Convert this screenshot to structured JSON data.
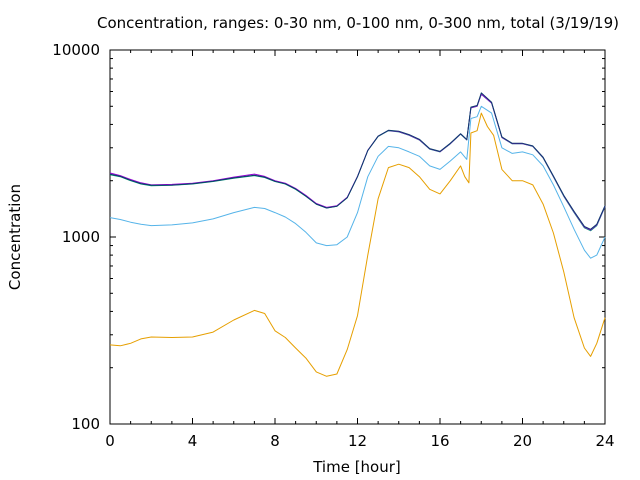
{
  "chart_data": {
    "type": "line",
    "title": "Concentration, ranges: 0-30 nm, 0-100 nm, 0-300 nm, total (3/19/19)",
    "xlabel": "Time [hour]",
    "ylabel": "Concentration",
    "xlim": [
      0,
      24
    ],
    "ylim": [
      100,
      10000
    ],
    "yscale": "log",
    "xticks": [
      0,
      4,
      8,
      12,
      16,
      20,
      24
    ],
    "yticks": [
      100,
      1000,
      10000
    ],
    "ytick_labels": [
      "100",
      "1000",
      "10000"
    ],
    "grid": false,
    "legend": "none",
    "series": [
      {
        "color": "#e69f00",
        "points": [
          [
            0,
            265
          ],
          [
            0.5,
            262
          ],
          [
            1,
            270
          ],
          [
            1.5,
            285
          ],
          [
            2,
            292
          ],
          [
            3,
            290
          ],
          [
            4,
            292
          ],
          [
            5,
            310
          ],
          [
            6,
            360
          ],
          [
            7,
            405
          ],
          [
            7.5,
            390
          ],
          [
            8,
            315
          ],
          [
            8.5,
            290
          ],
          [
            9,
            255
          ],
          [
            9.5,
            225
          ],
          [
            10,
            190
          ],
          [
            10.5,
            180
          ],
          [
            11,
            185
          ],
          [
            11.5,
            250
          ],
          [
            12,
            380
          ],
          [
            12.5,
            800
          ],
          [
            13,
            1600
          ],
          [
            13.5,
            2350
          ],
          [
            14,
            2450
          ],
          [
            14.5,
            2350
          ],
          [
            15,
            2100
          ],
          [
            15.5,
            1800
          ],
          [
            16,
            1700
          ],
          [
            16.5,
            2000
          ],
          [
            17,
            2400
          ],
          [
            17.2,
            2100
          ],
          [
            17.4,
            1950
          ],
          [
            17.5,
            3600
          ],
          [
            17.8,
            3700
          ],
          [
            18,
            4600
          ],
          [
            18.3,
            3900
          ],
          [
            18.6,
            3500
          ],
          [
            19,
            2300
          ],
          [
            19.5,
            2000
          ],
          [
            20,
            2000
          ],
          [
            20.5,
            1900
          ],
          [
            21,
            1500
          ],
          [
            21.5,
            1050
          ],
          [
            22,
            650
          ],
          [
            22.5,
            370
          ],
          [
            23,
            255
          ],
          [
            23.3,
            230
          ],
          [
            23.6,
            270
          ],
          [
            24,
            370
          ]
        ]
      },
      {
        "color": "#56b4e9",
        "points": [
          [
            0,
            1270
          ],
          [
            0.5,
            1240
          ],
          [
            1,
            1200
          ],
          [
            1.5,
            1170
          ],
          [
            2,
            1150
          ],
          [
            3,
            1160
          ],
          [
            4,
            1190
          ],
          [
            5,
            1250
          ],
          [
            6,
            1350
          ],
          [
            7,
            1440
          ],
          [
            7.5,
            1420
          ],
          [
            8,
            1350
          ],
          [
            8.5,
            1280
          ],
          [
            9,
            1180
          ],
          [
            9.5,
            1060
          ],
          [
            10,
            930
          ],
          [
            10.5,
            900
          ],
          [
            11,
            910
          ],
          [
            11.5,
            1000
          ],
          [
            12,
            1350
          ],
          [
            12.5,
            2100
          ],
          [
            13,
            2700
          ],
          [
            13.5,
            3050
          ],
          [
            14,
            3000
          ],
          [
            14.5,
            2850
          ],
          [
            15,
            2700
          ],
          [
            15.5,
            2400
          ],
          [
            16,
            2300
          ],
          [
            16.5,
            2550
          ],
          [
            17,
            2850
          ],
          [
            17.3,
            2600
          ],
          [
            17.5,
            4300
          ],
          [
            17.8,
            4400
          ],
          [
            18,
            5000
          ],
          [
            18.5,
            4600
          ],
          [
            19,
            3000
          ],
          [
            19.5,
            2800
          ],
          [
            20,
            2850
          ],
          [
            20.5,
            2750
          ],
          [
            21,
            2400
          ],
          [
            21.5,
            1900
          ],
          [
            22,
            1450
          ],
          [
            22.5,
            1100
          ],
          [
            23,
            850
          ],
          [
            23.3,
            770
          ],
          [
            23.6,
            800
          ],
          [
            24,
            1000
          ]
        ]
      },
      {
        "color": "#009e73",
        "points": [
          [
            0,
            2150
          ],
          [
            0.5,
            2100
          ],
          [
            1,
            2000
          ],
          [
            1.5,
            1920
          ],
          [
            2,
            1880
          ],
          [
            3,
            1890
          ],
          [
            4,
            1920
          ],
          [
            5,
            1980
          ],
          [
            6,
            2060
          ],
          [
            7,
            2130
          ],
          [
            7.5,
            2080
          ],
          [
            8,
            1980
          ],
          [
            8.5,
            1920
          ],
          [
            9,
            1800
          ],
          [
            9.5,
            1650
          ],
          [
            10,
            1500
          ],
          [
            10.5,
            1430
          ],
          [
            11,
            1460
          ],
          [
            11.5,
            1620
          ],
          [
            12,
            2100
          ],
          [
            12.5,
            2900
          ],
          [
            13,
            3450
          ],
          [
            13.5,
            3700
          ],
          [
            14,
            3650
          ],
          [
            14.5,
            3500
          ],
          [
            15,
            3300
          ],
          [
            15.5,
            2950
          ],
          [
            16,
            2850
          ],
          [
            16.5,
            3150
          ],
          [
            17,
            3550
          ],
          [
            17.3,
            3300
          ],
          [
            17.5,
            4900
          ],
          [
            17.8,
            5000
          ],
          [
            18,
            5800
          ],
          [
            18.5,
            5200
          ],
          [
            19,
            3400
          ],
          [
            19.5,
            3150
          ],
          [
            20,
            3150
          ],
          [
            20.5,
            3050
          ],
          [
            21,
            2650
          ],
          [
            21.5,
            2100
          ],
          [
            22,
            1650
          ],
          [
            22.5,
            1350
          ],
          [
            23,
            1120
          ],
          [
            23.3,
            1080
          ],
          [
            23.6,
            1150
          ],
          [
            24,
            1450
          ]
        ]
      },
      {
        "color": "#9400d3",
        "points": [
          [
            0,
            2200
          ],
          [
            0.5,
            2130
          ],
          [
            1,
            2030
          ],
          [
            1.5,
            1950
          ],
          [
            2,
            1900
          ],
          [
            3,
            1910
          ],
          [
            4,
            1940
          ],
          [
            5,
            2000
          ],
          [
            6,
            2090
          ],
          [
            7,
            2170
          ],
          [
            7.5,
            2110
          ],
          [
            8,
            2000
          ],
          [
            8.5,
            1940
          ],
          [
            9,
            1820
          ],
          [
            9.5,
            1670
          ],
          [
            10,
            1510
          ],
          [
            10.5,
            1440
          ],
          [
            11,
            1470
          ],
          [
            11.5,
            1630
          ],
          [
            12,
            2110
          ],
          [
            12.5,
            2910
          ],
          [
            13,
            3460
          ],
          [
            13.5,
            3710
          ],
          [
            14,
            3660
          ],
          [
            14.5,
            3510
          ],
          [
            15,
            3310
          ],
          [
            15.5,
            2960
          ],
          [
            16,
            2860
          ],
          [
            16.5,
            3160
          ],
          [
            17,
            3560
          ],
          [
            17.3,
            3310
          ],
          [
            17.5,
            4910
          ],
          [
            17.8,
            5010
          ],
          [
            18,
            5810
          ],
          [
            18.5,
            5210
          ],
          [
            19,
            3410
          ],
          [
            19.5,
            3160
          ],
          [
            20,
            3160
          ],
          [
            20.5,
            3060
          ],
          [
            21,
            2660
          ],
          [
            21.5,
            2110
          ],
          [
            22,
            1660
          ],
          [
            22.5,
            1360
          ],
          [
            23,
            1130
          ],
          [
            23.3,
            1090
          ],
          [
            23.6,
            1160
          ],
          [
            24,
            1460
          ]
        ]
      },
      {
        "color": "#0b3d6b",
        "points": [
          [
            0,
            2170
          ],
          [
            0.5,
            2110
          ],
          [
            1,
            2010
          ],
          [
            1.5,
            1930
          ],
          [
            2,
            1890
          ],
          [
            3,
            1895
          ],
          [
            4,
            1925
          ],
          [
            5,
            1985
          ],
          [
            6,
            2070
          ],
          [
            7,
            2140
          ],
          [
            7.5,
            2090
          ],
          [
            8,
            1985
          ],
          [
            8.5,
            1925
          ],
          [
            9,
            1805
          ],
          [
            9.5,
            1655
          ],
          [
            10,
            1500
          ],
          [
            10.5,
            1430
          ],
          [
            11,
            1460
          ],
          [
            11.5,
            1620
          ],
          [
            12,
            2100
          ],
          [
            12.5,
            2900
          ],
          [
            13,
            3460
          ],
          [
            13.5,
            3720
          ],
          [
            14,
            3680
          ],
          [
            14.5,
            3530
          ],
          [
            15,
            3330
          ],
          [
            15.5,
            2970
          ],
          [
            16,
            2870
          ],
          [
            16.5,
            3170
          ],
          [
            17,
            3570
          ],
          [
            17.3,
            3320
          ],
          [
            17.5,
            4950
          ],
          [
            17.8,
            5050
          ],
          [
            18,
            5900
          ],
          [
            18.5,
            5250
          ],
          [
            19,
            3430
          ],
          [
            19.5,
            3170
          ],
          [
            20,
            3170
          ],
          [
            20.5,
            3070
          ],
          [
            21,
            2670
          ],
          [
            21.5,
            2120
          ],
          [
            22,
            1670
          ],
          [
            22.5,
            1370
          ],
          [
            23,
            1140
          ],
          [
            23.3,
            1100
          ],
          [
            23.6,
            1170
          ],
          [
            24,
            1470
          ]
        ]
      }
    ]
  }
}
